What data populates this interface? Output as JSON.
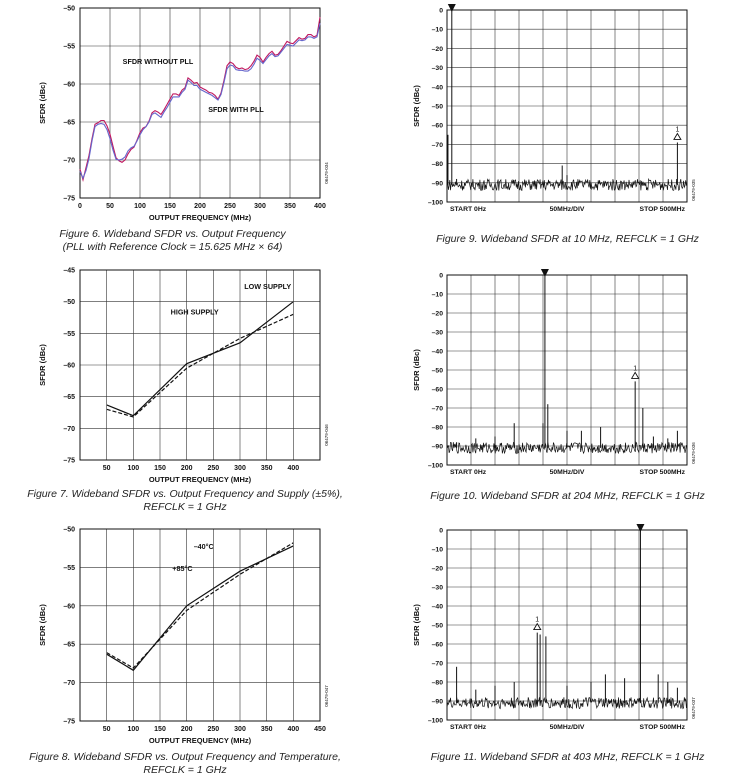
{
  "chart_data": [
    {
      "id": "fig6",
      "type": "line",
      "caption": [
        "Figure 6. Wideband SFDR vs. Output Frequency",
        "(PLL with Reference Clock = 15.625 MHz × 64)"
      ],
      "ylabel": "SFDR (dBc)",
      "xlabel": "OUTPUT FREQUENCY (MHz)",
      "xlim": [
        0,
        400
      ],
      "ylim": [
        -75,
        -50
      ],
      "xticks": [
        0,
        50,
        100,
        150,
        200,
        250,
        300,
        350,
        400
      ],
      "xticklabels": [
        "0",
        "50",
        "100",
        "150",
        "200",
        "250",
        "300",
        "350",
        "400"
      ],
      "yticks": [
        -50,
        -55,
        -60,
        -65,
        -70,
        -75
      ],
      "yticklabels": [
        "–50",
        "–55",
        "–60",
        "–65",
        "–70",
        "–75"
      ],
      "grid": true,
      "watermark": "06479-034",
      "annotations": [
        {
          "text": "SFDR WITHOUT PLL",
          "x": 130,
          "y": -57.4
        },
        {
          "text": "SFDR WITH PLL",
          "x": 260,
          "y": -63.7
        }
      ],
      "series": [
        {
          "color": "#c0185f",
          "x": [
            0,
            5,
            10,
            15,
            20,
            25,
            30,
            35,
            40,
            45,
            50,
            55,
            60,
            65,
            70,
            75,
            80,
            85,
            90,
            95,
            100,
            105,
            110,
            115,
            120,
            125,
            130,
            135,
            140,
            145,
            150,
            155,
            160,
            165,
            170,
            175,
            180,
            185,
            190,
            195,
            200,
            205,
            210,
            215,
            220,
            225,
            230,
            235,
            240,
            245,
            250,
            255,
            260,
            265,
            270,
            275,
            280,
            285,
            290,
            295,
            300,
            305,
            310,
            315,
            320,
            325,
            330,
            335,
            340,
            345,
            350,
            355,
            360,
            365,
            370,
            375,
            380,
            385,
            390,
            395,
            400
          ],
          "y": [
            -71.2,
            -72.6,
            -71.0,
            -69.4,
            -67.2,
            -65.3,
            -65.1,
            -64.8,
            -64.8,
            -65.5,
            -66.6,
            -68.2,
            -69.7,
            -70.1,
            -70.3,
            -70.0,
            -69.2,
            -68.6,
            -68.3,
            -67.4,
            -66.4,
            -65.8,
            -65.6,
            -64.9,
            -63.8,
            -63.5,
            -63.7,
            -64.0,
            -63.4,
            -62.7,
            -62.0,
            -61.3,
            -61.3,
            -61.5,
            -60.8,
            -60.5,
            -59.2,
            -59.5,
            -59.9,
            -59.8,
            -60.4,
            -60.6,
            -60.8,
            -61.1,
            -61.2,
            -61.5,
            -62.0,
            -61.2,
            -59.5,
            -57.6,
            -57.1,
            -57.3,
            -57.8,
            -58.0,
            -57.9,
            -58.1,
            -58.0,
            -57.6,
            -57.0,
            -56.2,
            -56.5,
            -57.1,
            -56.5,
            -56.0,
            -55.7,
            -56.2,
            -56.1,
            -55.6,
            -55.0,
            -54.4,
            -54.6,
            -54.7,
            -54.3,
            -53.9,
            -54.1,
            -54.0,
            -53.5,
            -53.5,
            -53.8,
            -53.6,
            -51.2
          ]
        },
        {
          "color": "#6666cc",
          "x": [
            0,
            5,
            10,
            15,
            20,
            25,
            30,
            35,
            40,
            45,
            50,
            55,
            60,
            65,
            70,
            75,
            80,
            85,
            90,
            95,
            100,
            105,
            110,
            115,
            120,
            125,
            130,
            135,
            140,
            145,
            150,
            155,
            160,
            165,
            170,
            175,
            180,
            185,
            190,
            195,
            200,
            205,
            210,
            215,
            220,
            225,
            230,
            235,
            240,
            245,
            250,
            255,
            260,
            265,
            270,
            275,
            280,
            285,
            290,
            295,
            300,
            305,
            310,
            315,
            320,
            325,
            330,
            335,
            340,
            345,
            350,
            355,
            360,
            365,
            370,
            375,
            380,
            385,
            390,
            395,
            400
          ],
          "y": [
            -71.5,
            -72.4,
            -71.4,
            -69.8,
            -67.5,
            -65.6,
            -65.3,
            -65.2,
            -65.3,
            -66.0,
            -67.2,
            -68.7,
            -69.9,
            -70.0,
            -69.9,
            -69.6,
            -68.8,
            -68.4,
            -68.2,
            -67.5,
            -66.7,
            -66.0,
            -65.6,
            -65.0,
            -64.0,
            -63.8,
            -64.1,
            -64.4,
            -63.7,
            -63.1,
            -62.4,
            -61.7,
            -61.7,
            -61.7,
            -61.1,
            -60.7,
            -59.5,
            -59.8,
            -60.2,
            -60.2,
            -60.7,
            -60.9,
            -61.1,
            -61.3,
            -61.5,
            -61.8,
            -62.1,
            -61.4,
            -59.8,
            -58.0,
            -57.5,
            -57.6,
            -58.1,
            -58.2,
            -58.2,
            -58.3,
            -58.3,
            -58.0,
            -57.4,
            -56.6,
            -56.9,
            -57.3,
            -56.8,
            -56.3,
            -56.0,
            -56.4,
            -56.3,
            -55.8,
            -55.3,
            -54.8,
            -54.9,
            -55.0,
            -54.6,
            -54.2,
            -54.3,
            -54.2,
            -53.8,
            -53.8,
            -54.0,
            -53.8,
            -52.0
          ]
        }
      ]
    },
    {
      "id": "fig7",
      "type": "line",
      "caption": [
        "Figure 7. Wideband SFDR vs. Output Frequency and Supply (±5%),",
        "REFCLK = 1 GHz"
      ],
      "ylabel": "SFDR (dBc)",
      "xlabel": "OUTPUT FREQUENCY (MHz)",
      "xlim": [
        0,
        450
      ],
      "ylim": [
        -75,
        -45
      ],
      "xticks": [
        50,
        100,
        150,
        200,
        250,
        300,
        350,
        400
      ],
      "xticklabels": [
        "50",
        "100",
        "150",
        "200",
        "250",
        "300",
        "350",
        "400"
      ],
      "yticks": [
        -45,
        -50,
        -55,
        -60,
        -65,
        -70,
        -75
      ],
      "yticklabels": [
        "–45",
        "–50",
        "–55",
        "–60",
        "–65",
        "–70",
        "–75"
      ],
      "grid": true,
      "watermark": "06479-046",
      "annotations": [
        {
          "text": "LOW SUPPLY",
          "x": 352,
          "y": -48.0
        },
        {
          "text": "HIGH SUPPLY",
          "x": 215,
          "y": -52.0
        }
      ],
      "series": [
        {
          "dash": false,
          "x": [
            50,
            100,
            200,
            300,
            400
          ],
          "y": [
            -66.3,
            -68.0,
            -59.8,
            -56.5,
            -50.0
          ]
        },
        {
          "dash": true,
          "x": [
            50,
            100,
            200,
            300,
            400
          ],
          "y": [
            -67.0,
            -68.2,
            -60.5,
            -55.8,
            -52.0
          ]
        }
      ]
    },
    {
      "id": "fig8",
      "type": "line",
      "caption": [
        "Figure 8. Wideband SFDR vs. Output Frequency and Temperature,",
        "REFCLK = 1 GHz"
      ],
      "ylabel": "SFDR (dBc)",
      "xlabel": "OUTPUT FREQUENCY (MHz)",
      "xlim": [
        0,
        450
      ],
      "ylim": [
        -75,
        -50
      ],
      "xticks": [
        50,
        100,
        150,
        200,
        250,
        300,
        350,
        400,
        450
      ],
      "xticklabels": [
        "50",
        "100",
        "150",
        "200",
        "250",
        "300",
        "350",
        "400",
        "450"
      ],
      "yticks": [
        -50,
        -55,
        -60,
        -65,
        -70,
        -75
      ],
      "yticklabels": [
        "–50",
        "–55",
        "–60",
        "–65",
        "–70",
        "–75"
      ],
      "grid": true,
      "watermark": "06479-047",
      "annotations": [
        {
          "text": "–40°C",
          "x": 232,
          "y": -52.6
        },
        {
          "text": "+85°C",
          "x": 192,
          "y": -55.5
        }
      ],
      "series": [
        {
          "dash": false,
          "x": [
            50,
            100,
            200,
            300,
            400
          ],
          "y": [
            -66.3,
            -68.4,
            -60.0,
            -55.5,
            -52.2
          ]
        },
        {
          "dash": true,
          "x": [
            50,
            100,
            200,
            300,
            400
          ],
          "y": [
            -66.1,
            -68.1,
            -60.6,
            -55.9,
            -51.8
          ]
        }
      ]
    },
    {
      "id": "fig9",
      "type": "spectrum",
      "caption": [
        "Figure 9. Wideband SFDR at 10 MHz, REFCLK = 1 GHz"
      ],
      "ylabel": "SFDR (dBc)",
      "ylim": [
        -100,
        0
      ],
      "yticks": [
        0,
        -10,
        -20,
        -30,
        -40,
        -50,
        -60,
        -70,
        -80,
        -90,
        -100
      ],
      "yticklabels": [
        "0",
        "–10",
        "–20",
        "–30",
        "–40",
        "–50",
        "–60",
        "–70",
        "–80",
        "–90",
        "–100"
      ],
      "bottom_labels": [
        "START 0Hz",
        "50MHz/DIV",
        "STOP 500MHz"
      ],
      "grid": true,
      "watermark": "06479-035",
      "noise_floor": -91,
      "carrier_x": 10,
      "marker1": {
        "x": 480,
        "y": -69,
        "label": "1"
      },
      "spurs": [
        [
          10,
          0
        ],
        [
          2,
          -65
        ],
        [
          500,
          -70
        ],
        [
          240,
          -81
        ],
        [
          480,
          -69
        ],
        [
          250,
          -86
        ],
        [
          20,
          -88
        ]
      ]
    },
    {
      "id": "fig10",
      "type": "spectrum",
      "caption": [
        "Figure 10. Wideband SFDR at 204 MHz, REFCLK = 1 GHz"
      ],
      "ylabel": "SFDR (dBc)",
      "ylim": [
        -100,
        0
      ],
      "yticks": [
        0,
        -10,
        -20,
        -30,
        -40,
        -50,
        -60,
        -70,
        -80,
        -90,
        -100
      ],
      "yticklabels": [
        "0",
        "–10",
        "–20",
        "–30",
        "–40",
        "–50",
        "–60",
        "–70",
        "–80",
        "–90",
        "–100"
      ],
      "bottom_labels": [
        "START 0Hz",
        "50MHz/DIV",
        "STOP 500MHz"
      ],
      "grid": true,
      "watermark": "06479-036",
      "noise_floor": -91,
      "carrier_x": 204,
      "marker1": {
        "x": 392,
        "y": -56,
        "label": "1"
      },
      "spurs": [
        [
          204,
          0
        ],
        [
          200,
          -78
        ],
        [
          210,
          -68
        ],
        [
          392,
          -56
        ],
        [
          408,
          -70
        ],
        [
          140,
          -78
        ],
        [
          250,
          -82
        ],
        [
          280,
          -82
        ],
        [
          320,
          -80
        ],
        [
          430,
          -85
        ],
        [
          460,
          -86
        ],
        [
          20,
          -88
        ],
        [
          100,
          -85
        ],
        [
          60,
          -86
        ],
        [
          480,
          -82
        ]
      ]
    },
    {
      "id": "fig11",
      "type": "spectrum",
      "caption": [
        "Figure 11. Wideband SFDR at 403 MHz, REFCLK = 1 GHz"
      ],
      "ylabel": "SFDR (dBc)",
      "ylim": [
        -100,
        0
      ],
      "yticks": [
        0,
        -10,
        -20,
        -30,
        -40,
        -50,
        -60,
        -70,
        -80,
        -90,
        -100
      ],
      "yticklabels": [
        "0",
        "–10",
        "–20",
        "–30",
        "–40",
        "–50",
        "–60",
        "–70",
        "–80",
        "–90",
        "–100"
      ],
      "bottom_labels": [
        "START 0Hz",
        "50MHz/DIV",
        "STOP 500MHz"
      ],
      "grid": true,
      "watermark": "06479-037",
      "noise_floor": -91,
      "carrier_x": 403,
      "marker1": {
        "x": 188,
        "y": -54,
        "label": "1"
      },
      "spurs": [
        [
          403,
          0
        ],
        [
          188,
          -54
        ],
        [
          194,
          -55
        ],
        [
          206,
          -56
        ],
        [
          20,
          -72
        ],
        [
          330,
          -76
        ],
        [
          370,
          -78
        ],
        [
          440,
          -76
        ],
        [
          460,
          -80
        ],
        [
          100,
          -82
        ],
        [
          140,
          -80
        ],
        [
          250,
          -82
        ],
        [
          300,
          -80
        ],
        [
          480,
          -83
        ],
        [
          60,
          -84
        ]
      ]
    }
  ]
}
